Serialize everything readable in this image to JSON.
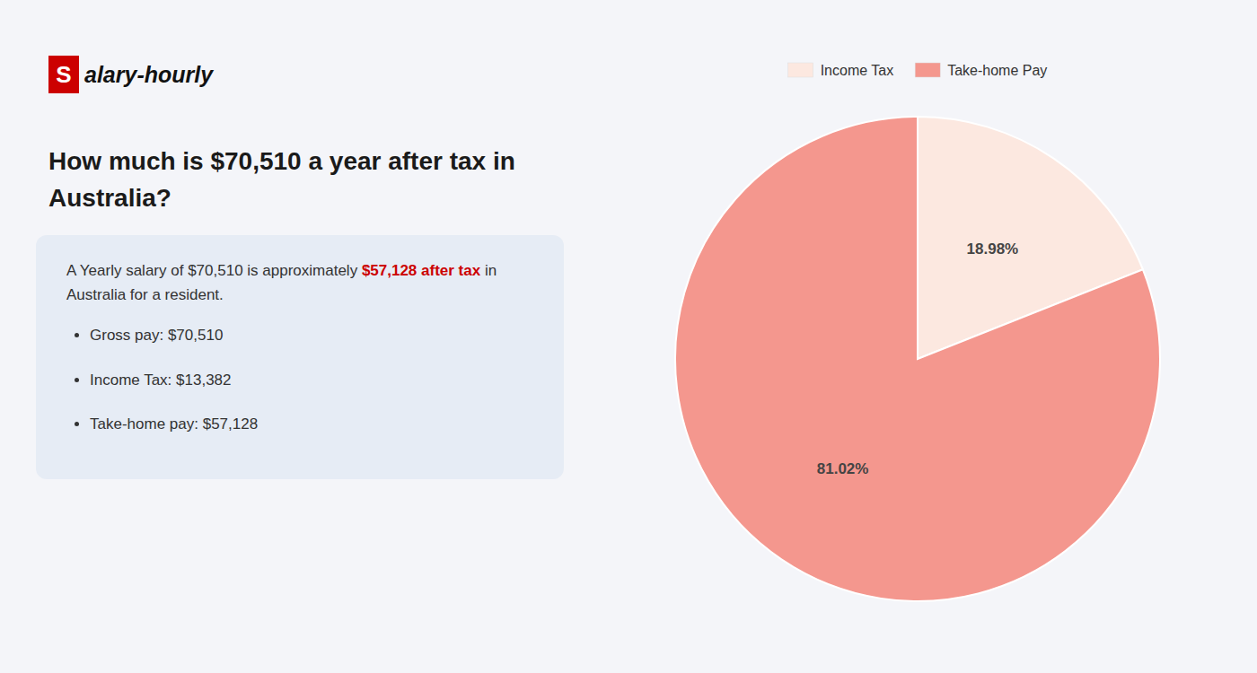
{
  "chart_data": {
    "type": "pie",
    "title": [
      "How much is $70,510 a year after tax in",
      "Australia?"
    ],
    "categories": [
      "Income Tax",
      "Take-home Pay"
    ],
    "values": [
      18.98,
      81.02
    ],
    "value_labels": [
      "18.98%",
      "81.02%"
    ],
    "colors": [
      "#fce8e0",
      "#f4978e"
    ],
    "data_labels": true,
    "legend": "top",
    "annotations": {
      "logo": [
        {
          "text": "S",
          "color": "#cc0000"
        },
        {
          "text": "alary-hourly"
        }
      ],
      "box": [
        {
          "text": "A Yearly salary of $70,510 is approximately "
        },
        {
          "text": "$57,128 after tax",
          "color": "#cc0000"
        },
        {
          "text": " in"
        },
        {
          "text": "Australia for a resident."
        }
      ],
      "bullets": [
        "Gross pay: $70,510",
        "Income Tax: $13,382",
        "Take-home pay: $57,128"
      ]
    }
  }
}
